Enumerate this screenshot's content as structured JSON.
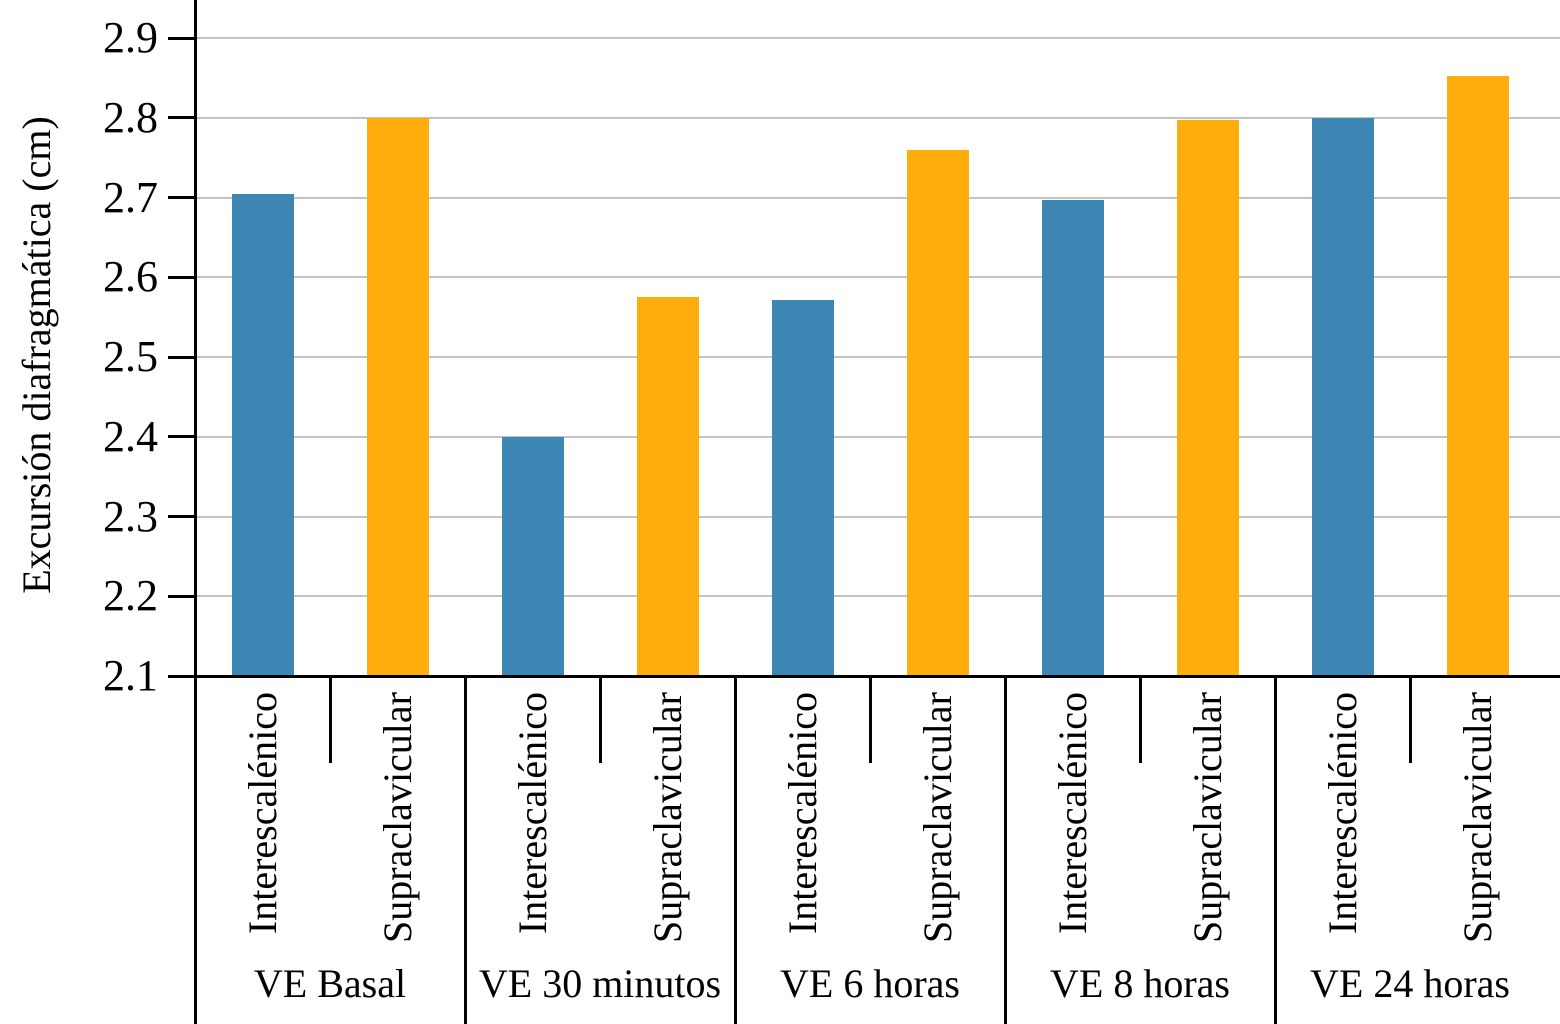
{
  "chart_data": {
    "type": "bar",
    "title": "",
    "ylabel": "Excursión diafragmática (cm)",
    "xlabel": "",
    "ylim": [
      2.1,
      2.95
    ],
    "ybase": 2.1,
    "ytick_labels": [
      "2.1",
      "2.2",
      "2.3",
      "2.4",
      "2.5",
      "2.6",
      "2.7",
      "2.8",
      "2.9"
    ],
    "grid": true,
    "gridline_color": "#c3c3c3",
    "legend_position": "none",
    "categories": [
      "VE Basal",
      "VE 30 minutos",
      "VE 6 horas",
      "VE 8 horas",
      "VE 24 horas"
    ],
    "series": [
      {
        "name": "Interescalénico",
        "color": "#3e87b5",
        "values": [
          2.705,
          2.4,
          2.572,
          2.697,
          2.8
        ]
      },
      {
        "name": "Supraclavicular",
        "color": "#ffad0d",
        "values": [
          2.8,
          2.575,
          2.76,
          2.797,
          2.852
        ]
      }
    ]
  }
}
